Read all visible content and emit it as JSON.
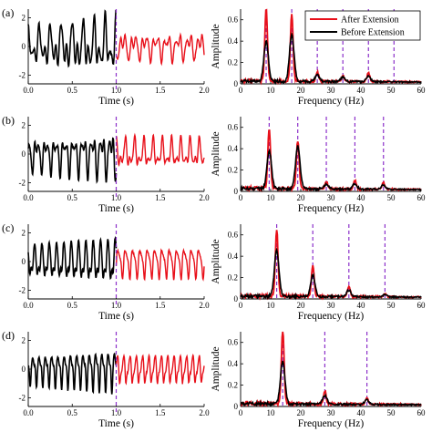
{
  "colors": {
    "after": "#e8101a",
    "before": "#000000",
    "marker": "#8b2fc9"
  },
  "legend": {
    "after": "After Extension",
    "before": "Before Extension",
    "placement": "top-right of first spectrum panel"
  },
  "chart_data": [
    {
      "panel": "(a)",
      "type": "line",
      "xlabel": "Time (s)",
      "ylabel": "",
      "xlim": [
        0,
        2
      ],
      "ylim": [
        -2.6,
        2.6
      ],
      "xticks": [
        "0.0",
        "0.5",
        "1.0",
        "1.5",
        "2.0"
      ],
      "yticks": [
        "-2",
        "0",
        "2"
      ],
      "split_marker_x": 1.0,
      "series": [
        {
          "name": "Before Extension",
          "segment": "0.0-1.0 s",
          "components": [
            {
              "f": 8,
              "a": 1.0
            },
            {
              "f": 16,
              "a": 0.9
            },
            {
              "f": 25,
              "a": 0.3
            }
          ],
          "growth": 1.2
        },
        {
          "name": "After Extension",
          "segment": "1.0-2.0 s",
          "components": [
            {
              "f": 8,
              "a": 0.55
            },
            {
              "f": 16,
              "a": 0.5
            },
            {
              "f": 25,
              "a": 0.15
            }
          ],
          "growth": 0
        }
      ]
    },
    {
      "panel": "(a)",
      "type": "line",
      "xlabel": "Frequency (Hz)",
      "ylabel": "Amplitude",
      "xlim": [
        0,
        60
      ],
      "ylim": [
        0,
        0.7
      ],
      "xticks": [
        "0",
        "10",
        "20",
        "30",
        "40",
        "50",
        "60"
      ],
      "yticks": [
        "0",
        "0.2",
        "0.4",
        "0.6"
      ],
      "marker_lines_x": [
        8.5,
        17,
        25.5,
        34,
        42.5,
        51
      ],
      "series": [
        {
          "name": "After Extension",
          "peaks": [
            {
              "x": 8.5,
              "y": 0.68
            },
            {
              "x": 17,
              "y": 0.62
            },
            {
              "x": 25.5,
              "y": 0.09
            },
            {
              "x": 34,
              "y": 0.05
            },
            {
              "x": 42.5,
              "y": 0.08
            }
          ]
        },
        {
          "name": "Before Extension",
          "peaks": [
            {
              "x": 8.5,
              "y": 0.37
            },
            {
              "x": 17,
              "y": 0.44
            },
            {
              "x": 25.5,
              "y": 0.06
            },
            {
              "x": 34,
              "y": 0.04
            },
            {
              "x": 42.5,
              "y": 0.05
            }
          ]
        }
      ]
    },
    {
      "panel": "(b)",
      "type": "line",
      "xlabel": "Time (s)",
      "ylabel": "",
      "xlim": [
        0,
        2
      ],
      "ylim": [
        -2.6,
        2.6
      ],
      "xticks": [
        "0.0",
        "0.5",
        "1.0",
        "1.5",
        "2.0"
      ],
      "yticks": [
        "-2",
        "0",
        "2"
      ],
      "split_marker_x": 1.0,
      "series": [
        {
          "name": "Before Extension",
          "segment": "0.0-1.0 s",
          "components": [
            {
              "f": 9.5,
              "a": 0.95
            },
            {
              "f": 19,
              "a": 0.75
            },
            {
              "f": 29,
              "a": 0.25
            }
          ],
          "growth": 1.0
        },
        {
          "name": "After Extension",
          "segment": "1.0-2.0 s",
          "components": [
            {
              "f": 9.5,
              "a": 0.7
            },
            {
              "f": 19,
              "a": 0.5
            },
            {
              "f": 29,
              "a": 0.15
            }
          ],
          "growth": 0
        }
      ]
    },
    {
      "panel": "(b)",
      "type": "line",
      "xlabel": "Frequency (Hz)",
      "ylabel": "Amplitude",
      "xlim": [
        0,
        60
      ],
      "ylim": [
        0,
        0.7
      ],
      "xticks": [
        "0",
        "10",
        "20",
        "30",
        "40",
        "50",
        "60"
      ],
      "yticks": [
        "0",
        "0.2",
        "0.4",
        "0.6"
      ],
      "marker_lines_x": [
        9.5,
        19,
        28.5,
        38,
        47.5
      ],
      "series": [
        {
          "name": "After Extension",
          "peaks": [
            {
              "x": 9.5,
              "y": 0.57
            },
            {
              "x": 19,
              "y": 0.45
            },
            {
              "x": 28.5,
              "y": 0.07
            },
            {
              "x": 38,
              "y": 0.08
            },
            {
              "x": 47.5,
              "y": 0.06
            }
          ]
        },
        {
          "name": "Before Extension",
          "peaks": [
            {
              "x": 9.5,
              "y": 0.36
            },
            {
              "x": 19,
              "y": 0.4
            },
            {
              "x": 28.5,
              "y": 0.04
            },
            {
              "x": 38,
              "y": 0.05
            },
            {
              "x": 47.5,
              "y": 0.04
            }
          ]
        }
      ]
    },
    {
      "panel": "(c)",
      "type": "line",
      "xlabel": "Time (s)",
      "ylabel": "",
      "xlim": [
        0,
        2
      ],
      "ylim": [
        -2.6,
        2.6
      ],
      "xticks": [
        "0.0",
        "0.5",
        "1.0",
        "1.5",
        "2.0"
      ],
      "yticks": [
        "-2",
        "0",
        "2"
      ],
      "split_marker_x": 1.0,
      "series": [
        {
          "name": "Before Extension",
          "segment": "0.0-1.0 s",
          "components": [
            {
              "f": 12,
              "a": 1.2
            },
            {
              "f": 24,
              "a": 0.5
            },
            {
              "f": 36,
              "a": 0.15
            }
          ],
          "growth": 0.8
        },
        {
          "name": "After Extension",
          "segment": "1.0-2.0 s",
          "components": [
            {
              "f": 12,
              "a": 0.85
            },
            {
              "f": 24,
              "a": 0.35
            },
            {
              "f": 36,
              "a": 0.1
            }
          ],
          "growth": 0
        }
      ]
    },
    {
      "panel": "(c)",
      "type": "line",
      "xlabel": "Frequency (Hz)",
      "ylabel": "Amplitude",
      "xlim": [
        0,
        60
      ],
      "ylim": [
        0,
        0.7
      ],
      "xticks": [
        "0",
        "10",
        "20",
        "30",
        "40",
        "50",
        "60"
      ],
      "yticks": [
        "0",
        "0.2",
        "0.4",
        "0.6"
      ],
      "marker_lines_x": [
        12,
        24,
        36,
        48
      ],
      "series": [
        {
          "name": "After Extension",
          "peaks": [
            {
              "x": 12,
              "y": 0.62
            },
            {
              "x": 24,
              "y": 0.29
            },
            {
              "x": 36,
              "y": 0.1
            },
            {
              "x": 48,
              "y": 0.03
            }
          ]
        },
        {
          "name": "Before Extension",
          "peaks": [
            {
              "x": 12,
              "y": 0.43
            },
            {
              "x": 24,
              "y": 0.2
            },
            {
              "x": 36,
              "y": 0.06
            },
            {
              "x": 48,
              "y": 0.02
            }
          ]
        }
      ]
    },
    {
      "panel": "(d)",
      "type": "line",
      "xlabel": "Time (s)",
      "ylabel": "",
      "xlim": [
        0,
        2
      ],
      "ylim": [
        -2.6,
        2.6
      ],
      "xticks": [
        "0.0",
        "0.5",
        "1.0",
        "1.5",
        "2.0"
      ],
      "yticks": [
        "-2",
        "0",
        "2"
      ],
      "split_marker_x": 1.0,
      "series": [
        {
          "name": "Before Extension",
          "segment": "0.0-1.0 s",
          "components": [
            {
              "f": 14,
              "a": 1.1
            },
            {
              "f": 28,
              "a": 0.45
            },
            {
              "f": 42,
              "a": 0.15
            }
          ],
          "growth": 0.9
        },
        {
          "name": "After Extension",
          "segment": "1.0-2.0 s",
          "components": [
            {
              "f": 14,
              "a": 0.8
            },
            {
              "f": 28,
              "a": 0.3
            },
            {
              "f": 42,
              "a": 0.1
            }
          ],
          "growth": 0
        }
      ]
    },
    {
      "panel": "(d)",
      "type": "line",
      "xlabel": "Frequency (Hz)",
      "ylabel": "Amplitude",
      "xlim": [
        0,
        60
      ],
      "ylim": [
        0,
        0.7
      ],
      "xticks": [
        "0",
        "10",
        "20",
        "30",
        "40",
        "50",
        "60"
      ],
      "yticks": [
        "0",
        "0.2",
        "0.4",
        "0.6"
      ],
      "marker_lines_x": [
        14,
        28,
        42
      ],
      "series": [
        {
          "name": "After Extension",
          "peaks": [
            {
              "x": 14,
              "y": 0.7
            },
            {
              "x": 28,
              "y": 0.12
            },
            {
              "x": 42,
              "y": 0.06
            }
          ]
        },
        {
          "name": "Before Extension",
          "peaks": [
            {
              "x": 14,
              "y": 0.4
            },
            {
              "x": 28,
              "y": 0.08
            },
            {
              "x": 42,
              "y": 0.04
            }
          ]
        }
      ]
    }
  ]
}
